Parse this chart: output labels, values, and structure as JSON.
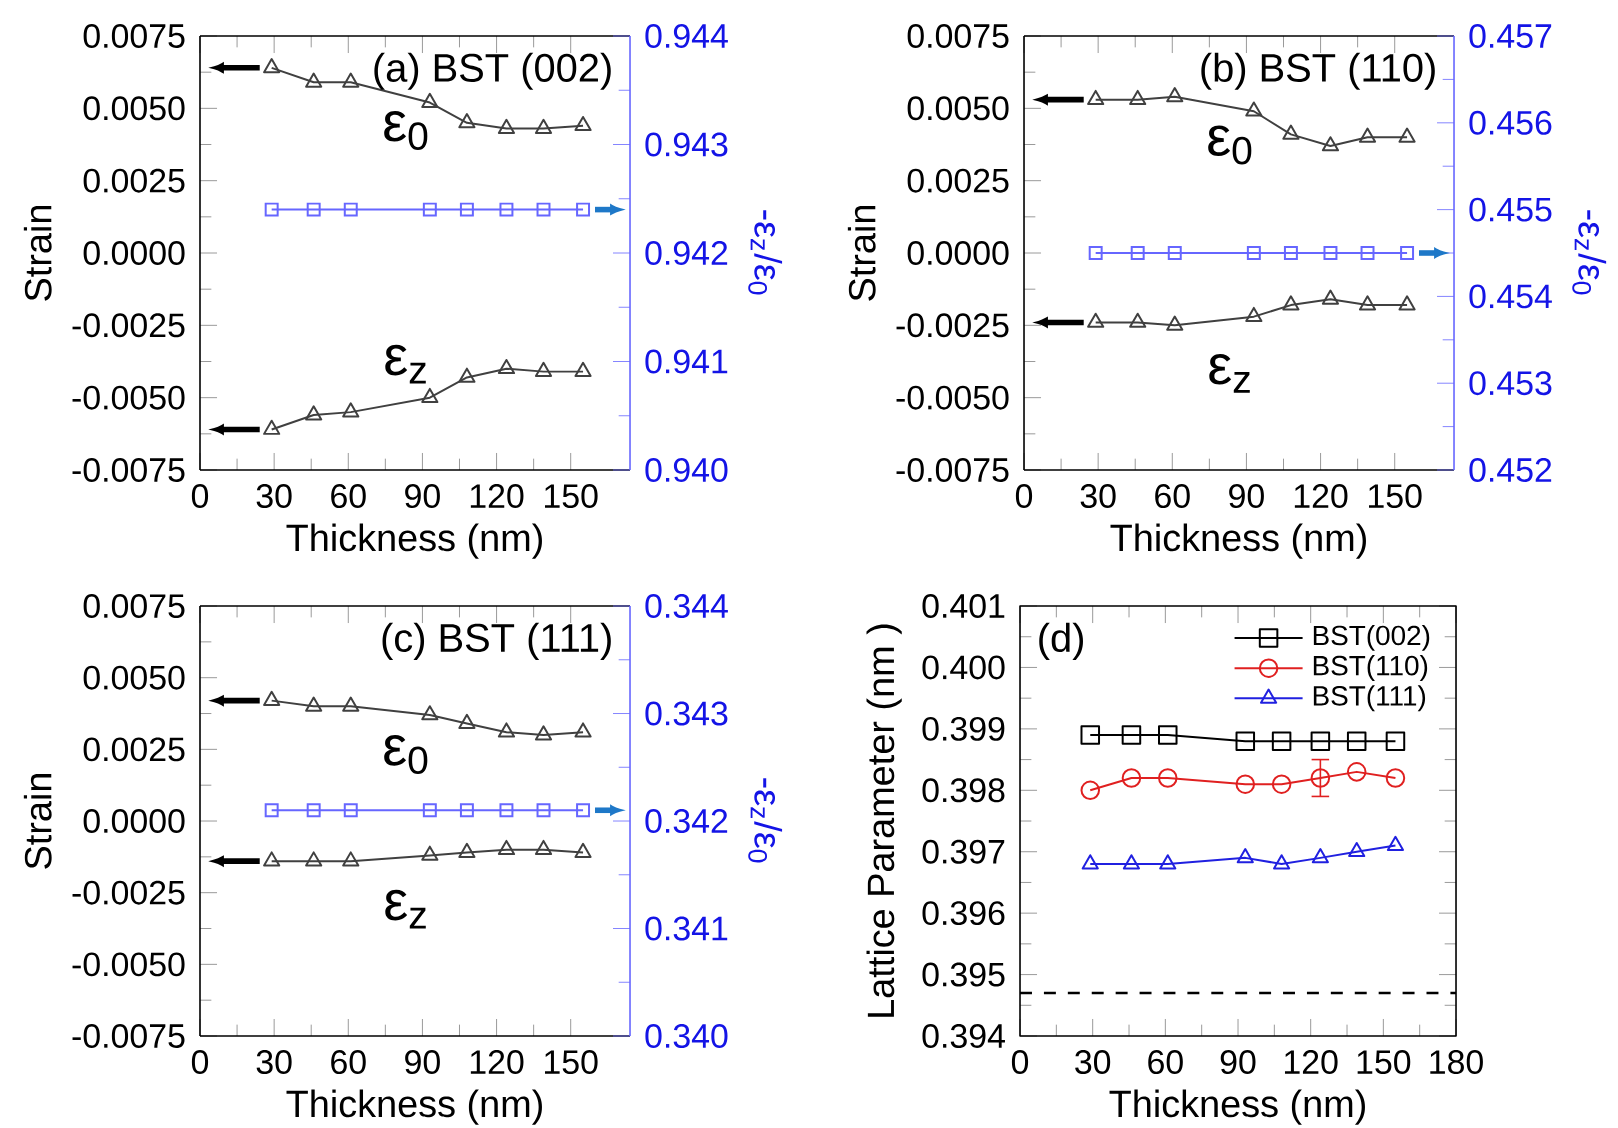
{
  "chart_data": [
    {
      "type": "line",
      "title": "(a) BST (002)",
      "xlabel": "Thickness (nm)",
      "ylabel": "Strain",
      "y2label": "-ε$_{z}$/ε$_{0}$",
      "x": [
        29,
        46,
        61,
        93,
        108,
        124,
        139,
        155
      ],
      "xlim": [
        0,
        174
      ],
      "xticks": [
        0,
        30,
        60,
        90,
        120,
        150
      ],
      "ylim": [
        -0.0075,
        0.0075
      ],
      "yticks": [
        {
          "value": -0.0075,
          "label": "-0.0075"
        },
        {
          "value": -0.005,
          "label": "-0.0050"
        },
        {
          "value": -0.0025,
          "label": "-0.0025"
        },
        {
          "value": 0,
          "label": "0.0000"
        },
        {
          "value": 0.0025,
          "label": "0.0025"
        },
        {
          "value": 0.005,
          "label": "0.0050"
        },
        {
          "value": 0.0075,
          "label": "0.0075"
        }
      ],
      "y2lim": [
        0.94,
        0.944
      ],
      "y2ticks": [
        {
          "value": 0.94,
          "label": "0.940"
        },
        0.941,
        0.942,
        0.943,
        0.944
      ],
      "marker": "triangle",
      "series": [
        {
          "name": "ε$_{0}$",
          "color": "#404040",
          "values": [
            0.0064,
            0.0059,
            0.0059,
            0.0052,
            0.0045,
            0.0043,
            0.0043,
            0.0044
          ]
        },
        {
          "name": "ε$_{z}$",
          "color": "#404040",
          "values": [
            -0.0061,
            -0.0056,
            -0.0055,
            -0.005,
            -0.0043,
            -0.004,
            -0.0041,
            -0.0041
          ]
        },
        {
          "color": "#6666ff",
          "axis": "y2",
          "marker": "square",
          "values": [
            0.9424,
            0.9424,
            0.9424,
            0.9424,
            0.9424,
            0.9424,
            0.9424,
            0.9424
          ]
        }
      ]
    },
    {
      "type": "line",
      "title": "(b) BST (110)",
      "xlabel": "Thickness (nm)",
      "ylabel": "Strain",
      "y2label": "-ε$_{z}$/ε$_{0}$",
      "x": [
        29,
        46,
        61,
        93,
        108,
        124,
        139,
        155
      ],
      "xlim": [
        0,
        174
      ],
      "xticks": [
        0,
        30,
        60,
        90,
        120,
        150
      ],
      "ylim": [
        -0.0075,
        0.0075
      ],
      "yticks": [
        {
          "value": -0.0075,
          "label": "-0.0075"
        },
        {
          "value": -0.005,
          "label": "-0.0050"
        },
        {
          "value": -0.0025,
          "label": "-0.0025"
        },
        {
          "value": 0,
          "label": "0.0000"
        },
        {
          "value": 0.0025,
          "label": "0.0025"
        },
        {
          "value": 0.005,
          "label": "0.0050"
        },
        {
          "value": 0.0075,
          "label": "0.0075"
        }
      ],
      "y2lim": [
        0.452,
        0.457
      ],
      "y2ticks": [
        0.452,
        0.453,
        0.454,
        0.455,
        0.456,
        0.457
      ],
      "marker": "triangle",
      "series": [
        {
          "name": "ε$_{0}$",
          "color": "#404040",
          "values": [
            0.0053,
            0.0053,
            0.0054,
            0.0049,
            0.0041,
            0.0037,
            0.004,
            0.004
          ]
        },
        {
          "name": "ε$_{z}$",
          "color": "#404040",
          "values": [
            -0.0024,
            -0.0024,
            -0.0025,
            -0.0022,
            -0.0018,
            -0.0016,
            -0.0018,
            -0.0018
          ]
        },
        {
          "color": "#6666ff",
          "axis": "y2",
          "marker": "square",
          "values": [
            0.4545,
            0.4545,
            0.4545,
            0.4545,
            0.4545,
            0.4545,
            0.4545,
            0.4545
          ]
        }
      ]
    },
    {
      "type": "line",
      "title": "(c) BST (111)",
      "xlabel": "Thickness (nm)",
      "ylabel": "Strain",
      "y2label": "-ε$_{z}$/ε$_{0}$",
      "x": [
        29,
        46,
        61,
        93,
        108,
        124,
        139,
        155
      ],
      "xlim": [
        0,
        174
      ],
      "xticks": [
        0,
        30,
        60,
        90,
        120,
        150
      ],
      "ylim": [
        -0.0075,
        0.0075
      ],
      "yticks": [
        {
          "value": -0.0075,
          "label": "-0.0075"
        },
        {
          "value": -0.005,
          "label": "-0.0050"
        },
        {
          "value": -0.0025,
          "label": "-0.0025"
        },
        {
          "value": 0,
          "label": "0.0000"
        },
        {
          "value": 0.0025,
          "label": "0.0025"
        },
        {
          "value": 0.005,
          "label": "0.0050"
        },
        {
          "value": 0.0075,
          "label": "0.0075"
        }
      ],
      "y2lim": [
        0.34,
        0.344
      ],
      "y2ticks": [
        {
          "value": 0.34,
          "label": "0.340"
        },
        0.341,
        0.342,
        0.343,
        0.344
      ],
      "marker": "triangle",
      "series": [
        {
          "name": "ε$_{0}$",
          "color": "#404040",
          "values": [
            0.0042,
            0.004,
            0.004,
            0.0037,
            0.0034,
            0.0031,
            0.003,
            0.0031
          ]
        },
        {
          "name": "ε$_{z}$",
          "color": "#404040",
          "values": [
            -0.0014,
            -0.0014,
            -0.0014,
            -0.0012,
            -0.0011,
            -0.001,
            -0.001,
            -0.0011
          ]
        },
        {
          "color": "#6666ff",
          "axis": "y2",
          "marker": "square",
          "values": [
            0.3421,
            0.3421,
            0.3421,
            0.3421,
            0.3421,
            0.3421,
            0.3421,
            0.3421
          ]
        }
      ]
    },
    {
      "type": "line",
      "title": "(d)",
      "xlabel": "Thickness (nm)",
      "ylabel": "Lattice Parameter (nm )",
      "x": [
        29,
        46,
        61,
        93,
        108,
        124,
        139,
        155
      ],
      "xlim": [
        0,
        180
      ],
      "xticks": [
        0,
        30,
        60,
        90,
        120,
        150,
        180
      ],
      "ylim": [
        0.394,
        0.401
      ],
      "yticks": [
        0.394,
        0.395,
        0.396,
        0.397,
        0.398,
        0.399,
        {
          "value": 0.4,
          "label": "0.400"
        },
        0.401
      ],
      "legend": "top right",
      "ref_lines": [
        {
          "axis": "y",
          "value": 0.3947,
          "line_style": "dashed",
          "color": "#000000"
        }
      ],
      "series": [
        {
          "name": "BST(002)",
          "color": "#000000",
          "marker": "square",
          "values": [
            0.3989,
            0.3989,
            0.3989,
            0.3988,
            0.3988,
            0.3988,
            0.3988,
            0.3988
          ]
        },
        {
          "name": "BST(110)",
          "color": "#e02020",
          "marker": "circle",
          "values": [
            0.398,
            0.3982,
            0.3982,
            0.3981,
            0.3981,
            0.3982,
            0.3983,
            0.3982
          ],
          "errors": [
            null,
            null,
            null,
            null,
            null,
            0.0003,
            null,
            null
          ]
        },
        {
          "name": "BST(111)",
          "color": "#2020e0",
          "marker": "triangle",
          "values": [
            0.3968,
            0.3968,
            0.3968,
            0.3969,
            0.3968,
            0.3969,
            0.397,
            0.3971
          ]
        }
      ]
    }
  ]
}
